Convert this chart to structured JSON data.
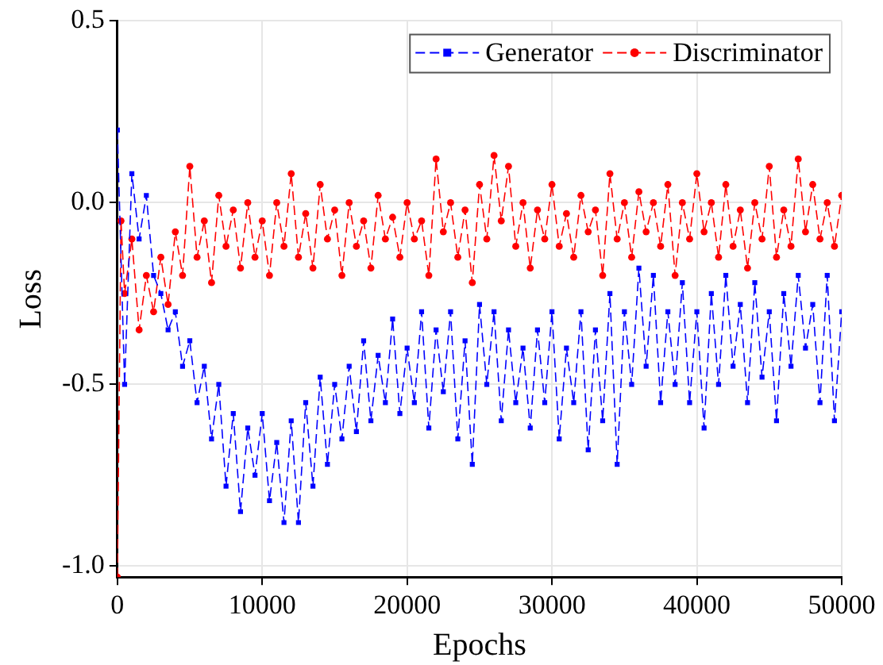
{
  "chart_data": {
    "type": "line",
    "xlabel": "Epochs",
    "ylabel": "Loss",
    "xlim": [
      0,
      50000
    ],
    "xticks": [
      0,
      10000,
      20000,
      30000,
      40000,
      50000
    ],
    "ylim": [
      -1.03,
      0.5
    ],
    "yticks": [
      {
        "value": -1.0,
        "label": "-1.0"
      },
      -0.5,
      {
        "value": 0,
        "label": "0.0"
      },
      0.5
    ],
    "grid": true,
    "legend": "top right",
    "line_style": "dashed",
    "series": [
      {
        "name": "Generator",
        "color": "#0000ff",
        "marker": "square",
        "x": [
          0,
          500,
          1000,
          1500,
          2000,
          2500,
          3000,
          3500,
          4000,
          4500,
          5000,
          5500,
          6000,
          6500,
          7000,
          7500,
          8000,
          8500,
          9000,
          9500,
          10000,
          10500,
          11000,
          11500,
          12000,
          12500,
          13000,
          13500,
          14000,
          14500,
          15000,
          15500,
          16000,
          16500,
          17000,
          17500,
          18000,
          18500,
          19000,
          19500,
          20000,
          20500,
          21000,
          21500,
          22000,
          22500,
          23000,
          23500,
          24000,
          24500,
          25000,
          25500,
          26000,
          26500,
          27000,
          27500,
          28000,
          28500,
          29000,
          29500,
          30000,
          30500,
          31000,
          31500,
          32000,
          32500,
          33000,
          33500,
          34000,
          34500,
          35000,
          35500,
          36000,
          36500,
          37000,
          37500,
          38000,
          38500,
          39000,
          39500,
          40000,
          40500,
          41000,
          41500,
          42000,
          42500,
          43000,
          43500,
          44000,
          44500,
          45000,
          45500,
          46000,
          46500,
          47000,
          47500,
          48000,
          48500,
          49000,
          49500,
          50000
        ],
        "values": [
          0.2,
          -0.5,
          0.08,
          -0.1,
          0.02,
          -0.2,
          -0.25,
          -0.35,
          -0.3,
          -0.45,
          -0.38,
          -0.55,
          -0.45,
          -0.65,
          -0.5,
          -0.78,
          -0.58,
          -0.85,
          -0.62,
          -0.75,
          -0.58,
          -0.82,
          -0.66,
          -0.88,
          -0.6,
          -0.88,
          -0.55,
          -0.78,
          -0.48,
          -0.72,
          -0.5,
          -0.65,
          -0.45,
          -0.63,
          -0.38,
          -0.6,
          -0.42,
          -0.55,
          -0.32,
          -0.58,
          -0.4,
          -0.55,
          -0.3,
          -0.62,
          -0.35,
          -0.52,
          -0.3,
          -0.65,
          -0.38,
          -0.72,
          -0.28,
          -0.5,
          -0.3,
          -0.6,
          -0.35,
          -0.55,
          -0.4,
          -0.62,
          -0.35,
          -0.55,
          -0.3,
          -0.65,
          -0.4,
          -0.55,
          -0.3,
          -0.68,
          -0.35,
          -0.6,
          -0.25,
          -0.72,
          -0.3,
          -0.5,
          -0.18,
          -0.45,
          -0.2,
          -0.55,
          -0.3,
          -0.5,
          -0.22,
          -0.55,
          -0.3,
          -0.62,
          -0.25,
          -0.5,
          -0.2,
          -0.45,
          -0.28,
          -0.55,
          -0.22,
          -0.48,
          -0.3,
          -0.6,
          -0.25,
          -0.45,
          -0.2,
          -0.4,
          -0.28,
          -0.55,
          -0.2,
          -0.6,
          -0.3
        ]
      },
      {
        "name": "Discriminator",
        "color": "#ff0000",
        "marker": "circle",
        "x": [
          0,
          250,
          500,
          1000,
          1500,
          2000,
          2500,
          3000,
          3500,
          4000,
          4500,
          5000,
          5500,
          6000,
          6500,
          7000,
          7500,
          8000,
          8500,
          9000,
          9500,
          10000,
          10500,
          11000,
          11500,
          12000,
          12500,
          13000,
          13500,
          14000,
          14500,
          15000,
          15500,
          16000,
          16500,
          17000,
          17500,
          18000,
          18500,
          19000,
          19500,
          20000,
          20500,
          21000,
          21500,
          22000,
          22500,
          23000,
          23500,
          24000,
          24500,
          25000,
          25500,
          26000,
          26500,
          27000,
          27500,
          28000,
          28500,
          29000,
          29500,
          30000,
          30500,
          31000,
          31500,
          32000,
          32500,
          33000,
          33500,
          34000,
          34500,
          35000,
          35500,
          36000,
          36500,
          37000,
          37500,
          38000,
          38500,
          39000,
          39500,
          40000,
          40500,
          41000,
          41500,
          42000,
          42500,
          43000,
          43500,
          44000,
          44500,
          45000,
          45500,
          46000,
          46500,
          47000,
          47500,
          48000,
          48500,
          49000,
          49500,
          50000
        ],
        "values": [
          -1.03,
          -0.05,
          -0.25,
          -0.1,
          -0.35,
          -0.2,
          -0.3,
          -0.15,
          -0.28,
          -0.08,
          -0.2,
          0.1,
          -0.15,
          -0.05,
          -0.22,
          0.02,
          -0.12,
          -0.02,
          -0.18,
          0.0,
          -0.15,
          -0.05,
          -0.2,
          0.0,
          -0.12,
          0.08,
          -0.15,
          -0.03,
          -0.18,
          0.05,
          -0.1,
          -0.02,
          -0.2,
          0.0,
          -0.12,
          -0.05,
          -0.18,
          0.02,
          -0.1,
          -0.04,
          -0.15,
          0.0,
          -0.1,
          -0.05,
          -0.2,
          0.12,
          -0.08,
          0.0,
          -0.15,
          -0.02,
          -0.22,
          0.05,
          -0.1,
          0.13,
          -0.05,
          0.1,
          -0.12,
          0.0,
          -0.18,
          -0.02,
          -0.1,
          0.05,
          -0.12,
          -0.03,
          -0.15,
          0.02,
          -0.08,
          -0.02,
          -0.2,
          0.08,
          -0.1,
          0.0,
          -0.15,
          0.03,
          -0.08,
          0.0,
          -0.12,
          0.05,
          -0.2,
          0.0,
          -0.1,
          0.08,
          -0.08,
          0.0,
          -0.15,
          0.05,
          -0.12,
          -0.02,
          -0.18,
          0.0,
          -0.1,
          0.1,
          -0.15,
          -0.02,
          -0.12,
          0.12,
          -0.08,
          0.05,
          -0.1,
          0.0,
          -0.12,
          0.02
        ]
      }
    ]
  }
}
